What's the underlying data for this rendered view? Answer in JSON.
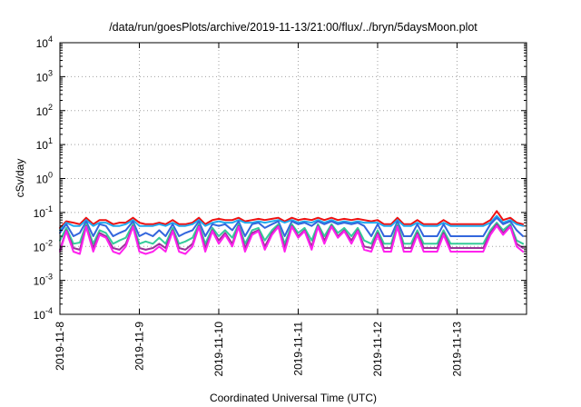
{
  "chart_data": {
    "type": "line",
    "title": "/data/run/goesPlots/archive/2019-11-13/21:00/flux/../bryn/5daysMoon.plot",
    "xlabel": "Coordinated Universal Time (UTC)",
    "ylabel": "cSv/day",
    "yscale": "log",
    "ylim": [
      0.0001,
      10000
    ],
    "xlim": [
      "2019-11-08",
      "2019-11-13T21:00"
    ],
    "grid": true,
    "x_ticks": [
      "2019-11-8",
      "2019-11-9",
      "2019-11-10",
      "2019-11-11",
      "2019-11-12",
      "2019-11-13"
    ],
    "y_ticks": [
      {
        "base": "10",
        "exp": "4"
      },
      {
        "base": "10",
        "exp": "3"
      },
      {
        "base": "10",
        "exp": "2"
      },
      {
        "base": "10",
        "exp": "1"
      },
      {
        "base": "10",
        "exp": "0"
      },
      {
        "base": "10",
        "exp": "-1"
      },
      {
        "base": "10",
        "exp": "-2"
      },
      {
        "base": "10",
        "exp": "-3"
      },
      {
        "base": "10",
        "exp": "-4"
      }
    ],
    "x": [
      0,
      0.08,
      0.17,
      0.25,
      0.33,
      0.42,
      0.5,
      0.58,
      0.67,
      0.75,
      0.83,
      0.92,
      1,
      1.08,
      1.17,
      1.25,
      1.33,
      1.42,
      1.5,
      1.58,
      1.67,
      1.75,
      1.83,
      1.92,
      2,
      2.08,
      2.17,
      2.25,
      2.33,
      2.42,
      2.5,
      2.58,
      2.67,
      2.75,
      2.83,
      2.92,
      3,
      3.08,
      3.17,
      3.25,
      3.33,
      3.42,
      3.5,
      3.58,
      3.67,
      3.75,
      3.83,
      3.92,
      4,
      4.08,
      4.17,
      4.25,
      4.33,
      4.42,
      4.5,
      4.58,
      4.67,
      4.75,
      4.83,
      4.92,
      5,
      5.08,
      5.17,
      5.25,
      5.33,
      5.42,
      5.5,
      5.58,
      5.67,
      5.75,
      5.83
    ],
    "x_units": "days since 2019-11-08 00:00 UTC",
    "series": [
      {
        "color": "#ee1111",
        "values": [
          0.035,
          0.055,
          0.05,
          0.045,
          0.07,
          0.045,
          0.06,
          0.06,
          0.045,
          0.05,
          0.05,
          0.07,
          0.05,
          0.045,
          0.045,
          0.05,
          0.045,
          0.06,
          0.045,
          0.045,
          0.05,
          0.07,
          0.045,
          0.06,
          0.065,
          0.06,
          0.06,
          0.07,
          0.055,
          0.06,
          0.065,
          0.06,
          0.065,
          0.07,
          0.055,
          0.07,
          0.06,
          0.065,
          0.06,
          0.07,
          0.06,
          0.07,
          0.06,
          0.065,
          0.06,
          0.065,
          0.06,
          0.055,
          0.06,
          0.045,
          0.045,
          0.07,
          0.045,
          0.045,
          0.06,
          0.045,
          0.045,
          0.045,
          0.06,
          0.045,
          0.045,
          0.045,
          0.045,
          0.045,
          0.045,
          0.06,
          0.11,
          0.06,
          0.07,
          0.05,
          0.045
        ]
      },
      {
        "color": "#22aaee",
        "values": [
          0.03,
          0.05,
          0.04,
          0.04,
          0.06,
          0.04,
          0.05,
          0.05,
          0.04,
          0.04,
          0.045,
          0.06,
          0.04,
          0.04,
          0.04,
          0.045,
          0.04,
          0.05,
          0.04,
          0.04,
          0.045,
          0.06,
          0.04,
          0.05,
          0.055,
          0.05,
          0.05,
          0.06,
          0.05,
          0.05,
          0.055,
          0.05,
          0.055,
          0.06,
          0.05,
          0.06,
          0.05,
          0.055,
          0.05,
          0.06,
          0.05,
          0.06,
          0.05,
          0.055,
          0.05,
          0.055,
          0.05,
          0.05,
          0.05,
          0.04,
          0.04,
          0.06,
          0.04,
          0.04,
          0.05,
          0.04,
          0.04,
          0.04,
          0.05,
          0.04,
          0.04,
          0.04,
          0.04,
          0.04,
          0.04,
          0.05,
          0.08,
          0.05,
          0.06,
          0.045,
          0.04
        ]
      },
      {
        "color": "#3366dd",
        "values": [
          0.025,
          0.045,
          0.02,
          0.025,
          0.055,
          0.02,
          0.045,
          0.04,
          0.02,
          0.025,
          0.03,
          0.055,
          0.02,
          0.025,
          0.02,
          0.03,
          0.02,
          0.045,
          0.02,
          0.025,
          0.03,
          0.055,
          0.02,
          0.045,
          0.04,
          0.045,
          0.03,
          0.055,
          0.02,
          0.045,
          0.05,
          0.035,
          0.045,
          0.055,
          0.02,
          0.055,
          0.045,
          0.05,
          0.04,
          0.055,
          0.045,
          0.055,
          0.045,
          0.05,
          0.045,
          0.05,
          0.04,
          0.02,
          0.045,
          0.02,
          0.02,
          0.055,
          0.02,
          0.02,
          0.045,
          0.02,
          0.02,
          0.02,
          0.045,
          0.02,
          0.02,
          0.02,
          0.02,
          0.02,
          0.02,
          0.045,
          0.07,
          0.045,
          0.055,
          0.03,
          0.02
        ]
      },
      {
        "color": "#33cc99",
        "values": [
          0.015,
          0.035,
          0.012,
          0.013,
          0.045,
          0.012,
          0.03,
          0.025,
          0.012,
          0.015,
          0.018,
          0.045,
          0.012,
          0.014,
          0.012,
          0.018,
          0.012,
          0.035,
          0.012,
          0.014,
          0.018,
          0.045,
          0.012,
          0.035,
          0.02,
          0.03,
          0.018,
          0.045,
          0.012,
          0.03,
          0.035,
          0.015,
          0.03,
          0.045,
          0.012,
          0.045,
          0.025,
          0.035,
          0.015,
          0.045,
          0.02,
          0.045,
          0.025,
          0.035,
          0.02,
          0.035,
          0.015,
          0.012,
          0.03,
          0.012,
          0.012,
          0.045,
          0.012,
          0.012,
          0.03,
          0.012,
          0.012,
          0.012,
          0.03,
          0.012,
          0.012,
          0.012,
          0.012,
          0.012,
          0.012,
          0.03,
          0.05,
          0.03,
          0.045,
          0.015,
          0.012
        ]
      },
      {
        "color": "#993399",
        "values": [
          0.008,
          0.03,
          0.009,
          0.008,
          0.04,
          0.009,
          0.025,
          0.02,
          0.009,
          0.008,
          0.012,
          0.04,
          0.009,
          0.008,
          0.009,
          0.012,
          0.009,
          0.03,
          0.009,
          0.008,
          0.012,
          0.04,
          0.009,
          0.03,
          0.015,
          0.025,
          0.012,
          0.04,
          0.009,
          0.025,
          0.03,
          0.01,
          0.025,
          0.04,
          0.009,
          0.04,
          0.02,
          0.03,
          0.01,
          0.04,
          0.015,
          0.04,
          0.02,
          0.03,
          0.015,
          0.03,
          0.01,
          0.009,
          0.025,
          0.009,
          0.009,
          0.04,
          0.009,
          0.009,
          0.025,
          0.009,
          0.009,
          0.009,
          0.025,
          0.009,
          0.009,
          0.009,
          0.009,
          0.009,
          0.009,
          0.025,
          0.045,
          0.025,
          0.04,
          0.012,
          0.009
        ]
      },
      {
        "color": "#ff22ee",
        "values": [
          0.007,
          0.028,
          0.007,
          0.006,
          0.038,
          0.007,
          0.022,
          0.018,
          0.007,
          0.006,
          0.01,
          0.038,
          0.007,
          0.006,
          0.007,
          0.01,
          0.007,
          0.028,
          0.007,
          0.006,
          0.01,
          0.038,
          0.007,
          0.028,
          0.012,
          0.022,
          0.01,
          0.038,
          0.007,
          0.022,
          0.028,
          0.008,
          0.022,
          0.038,
          0.007,
          0.038,
          0.018,
          0.028,
          0.008,
          0.038,
          0.012,
          0.038,
          0.018,
          0.028,
          0.012,
          0.028,
          0.008,
          0.007,
          0.022,
          0.007,
          0.007,
          0.038,
          0.007,
          0.007,
          0.022,
          0.007,
          0.007,
          0.007,
          0.022,
          0.007,
          0.007,
          0.007,
          0.007,
          0.007,
          0.007,
          0.022,
          0.04,
          0.022,
          0.038,
          0.01,
          0.007
        ]
      }
    ]
  }
}
